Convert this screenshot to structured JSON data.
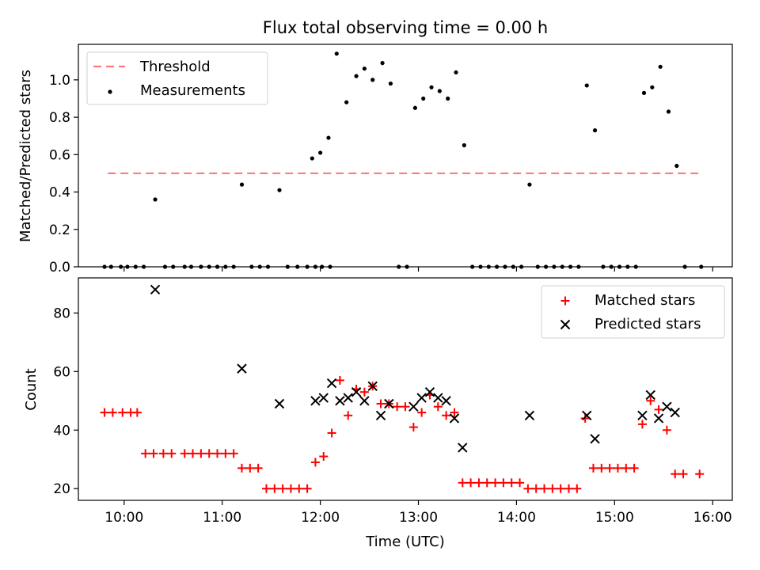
{
  "colors": {
    "threshold": "#ff7b7b",
    "measurement": "#000000",
    "matched": "#ff0000",
    "predicted": "#000000",
    "axes": "#000000"
  },
  "chart_data": [
    {
      "type": "scatter",
      "title": "Flux total observing time = 0.00 h",
      "xlabel": "",
      "ylabel": "Matched/Predicted stars",
      "ylim": [
        0,
        1.19
      ],
      "yticks": [
        0.0,
        0.2,
        0.4,
        0.6,
        0.8,
        1.0
      ],
      "ytick_labels": [
        "0.0",
        "0.2",
        "0.4",
        "0.6",
        "0.8",
        "1.0"
      ],
      "legend_position": "upper-left",
      "threshold": {
        "name": "Threshold",
        "y": 0.5,
        "x_start": "09:50",
        "x_end": "15:53",
        "style": "dashed"
      },
      "series": [
        {
          "name": "Measurements",
          "marker": "dot",
          "points": [
            [
              "09:48",
              0
            ],
            [
              "09:52",
              0
            ],
            [
              "09:58",
              0
            ],
            [
              "10:02",
              0
            ],
            [
              "10:07",
              0
            ],
            [
              "10:12",
              0
            ],
            [
              "10:19",
              0.36
            ],
            [
              "10:25",
              0
            ],
            [
              "10:30",
              0
            ],
            [
              "10:37",
              0
            ],
            [
              "10:41",
              0
            ],
            [
              "10:47",
              0
            ],
            [
              "10:52",
              0
            ],
            [
              "10:57",
              0
            ],
            [
              "11:02",
              0
            ],
            [
              "11:07",
              0
            ],
            [
              "11:12",
              0.44
            ],
            [
              "11:18",
              0
            ],
            [
              "11:23",
              0
            ],
            [
              "11:28",
              0
            ],
            [
              "11:35",
              0.41
            ],
            [
              "11:40",
              0
            ],
            [
              "11:46",
              0
            ],
            [
              "11:52",
              0
            ],
            [
              "11:57",
              0
            ],
            [
              "12:01",
              0
            ],
            [
              "12:06",
              0
            ],
            [
              "11:55",
              0.58
            ],
            [
              "12:00",
              0.61
            ],
            [
              "12:05",
              0.69
            ],
            [
              "12:10",
              1.14
            ],
            [
              "12:16",
              0.88
            ],
            [
              "12:22",
              1.02
            ],
            [
              "12:27",
              1.06
            ],
            [
              "12:32",
              1.0
            ],
            [
              "12:38",
              1.09
            ],
            [
              "12:43",
              0.98
            ],
            [
              "12:48",
              0
            ],
            [
              "12:53",
              0
            ],
            [
              "12:58",
              0.85
            ],
            [
              "13:03",
              0.9
            ],
            [
              "13:08",
              0.96
            ],
            [
              "13:13",
              0.94
            ],
            [
              "13:18",
              0.9
            ],
            [
              "13:23",
              1.04
            ],
            [
              "13:28",
              0.65
            ],
            [
              "13:33",
              0
            ],
            [
              "13:38",
              0
            ],
            [
              "13:43",
              0
            ],
            [
              "13:48",
              0
            ],
            [
              "13:53",
              0
            ],
            [
              "13:58",
              0
            ],
            [
              "14:03",
              0
            ],
            [
              "14:08",
              0.44
            ],
            [
              "14:13",
              0
            ],
            [
              "14:18",
              0
            ],
            [
              "14:23",
              0
            ],
            [
              "14:28",
              0
            ],
            [
              "14:33",
              0
            ],
            [
              "14:38",
              0
            ],
            [
              "14:43",
              0.97
            ],
            [
              "14:48",
              0.73
            ],
            [
              "14:53",
              0
            ],
            [
              "14:58",
              0
            ],
            [
              "15:03",
              0
            ],
            [
              "15:08",
              0
            ],
            [
              "15:13",
              0
            ],
            [
              "15:18",
              0.93
            ],
            [
              "15:23",
              0.96
            ],
            [
              "15:28",
              1.07
            ],
            [
              "15:33",
              0.83
            ],
            [
              "15:38",
              0.54
            ],
            [
              "15:43",
              0
            ],
            [
              "15:53",
              0
            ]
          ]
        }
      ]
    },
    {
      "type": "scatter",
      "title": "",
      "xlabel": "Time (UTC)",
      "ylabel": "Count",
      "ylim": [
        16,
        92
      ],
      "yticks": [
        20,
        40,
        60,
        80
      ],
      "ytick_labels": [
        "20",
        "40",
        "60",
        "80"
      ],
      "x_range": [
        "09:32",
        "16:12"
      ],
      "xticks": [
        "10:00",
        "11:00",
        "12:00",
        "13:00",
        "14:00",
        "15:00",
        "16:00"
      ],
      "xtick_labels": [
        "10:00",
        "11:00",
        "12:00",
        "13:00",
        "14:00",
        "15:00",
        "16:00"
      ],
      "legend_position": "upper-right",
      "series": [
        {
          "name": "Matched stars",
          "marker": "plus",
          "points": [
            [
              "09:48",
              46
            ],
            [
              "09:53",
              46
            ],
            [
              "09:59",
              46
            ],
            [
              "10:04",
              46
            ],
            [
              "10:08",
              46
            ],
            [
              "10:13",
              32
            ],
            [
              "10:18",
              32
            ],
            [
              "10:24",
              32
            ],
            [
              "10:29",
              32
            ],
            [
              "10:37",
              32
            ],
            [
              "10:42",
              32
            ],
            [
              "10:47",
              32
            ],
            [
              "10:52",
              32
            ],
            [
              "10:57",
              32
            ],
            [
              "11:02",
              32
            ],
            [
              "11:07",
              32
            ],
            [
              "11:12",
              27
            ],
            [
              "11:17",
              27
            ],
            [
              "11:22",
              27
            ],
            [
              "11:27",
              20
            ],
            [
              "11:32",
              20
            ],
            [
              "11:37",
              20
            ],
            [
              "11:42",
              20
            ],
            [
              "11:47",
              20
            ],
            [
              "11:52",
              20
            ],
            [
              "11:57",
              29
            ],
            [
              "12:02",
              31
            ],
            [
              "12:07",
              39
            ],
            [
              "12:12",
              57
            ],
            [
              "12:17",
              45
            ],
            [
              "12:22",
              54
            ],
            [
              "12:27",
              53
            ],
            [
              "12:32",
              55
            ],
            [
              "12:37",
              49
            ],
            [
              "12:42",
              49
            ],
            [
              "12:47",
              48
            ],
            [
              "12:52",
              48
            ],
            [
              "12:57",
              41
            ],
            [
              "13:02",
              46
            ],
            [
              "13:07",
              52
            ],
            [
              "13:12",
              48
            ],
            [
              "13:17",
              45
            ],
            [
              "13:22",
              46
            ],
            [
              "13:27",
              22
            ],
            [
              "13:32",
              22
            ],
            [
              "13:37",
              22
            ],
            [
              "13:42",
              22
            ],
            [
              "13:47",
              22
            ],
            [
              "13:52",
              22
            ],
            [
              "13:57",
              22
            ],
            [
              "14:02",
              22
            ],
            [
              "14:07",
              20
            ],
            [
              "14:12",
              20
            ],
            [
              "14:17",
              20
            ],
            [
              "14:22",
              20
            ],
            [
              "14:27",
              20
            ],
            [
              "14:32",
              20
            ],
            [
              "14:37",
              20
            ],
            [
              "14:42",
              44
            ],
            [
              "14:47",
              27
            ],
            [
              "14:52",
              27
            ],
            [
              "14:57",
              27
            ],
            [
              "15:02",
              27
            ],
            [
              "15:07",
              27
            ],
            [
              "15:12",
              27
            ],
            [
              "15:17",
              42
            ],
            [
              "15:22",
              50
            ],
            [
              "15:27",
              47
            ],
            [
              "15:32",
              40
            ],
            [
              "15:37",
              25
            ],
            [
              "15:42",
              25
            ],
            [
              "15:52",
              25
            ]
          ]
        },
        {
          "name": "Predicted stars",
          "marker": "x",
          "points": [
            [
              "10:19",
              88
            ],
            [
              "11:12",
              61
            ],
            [
              "11:35",
              49
            ],
            [
              "11:57",
              50
            ],
            [
              "12:02",
              51
            ],
            [
              "12:07",
              56
            ],
            [
              "12:12",
              50
            ],
            [
              "12:17",
              51
            ],
            [
              "12:22",
              53
            ],
            [
              "12:27",
              50
            ],
            [
              "12:32",
              55
            ],
            [
              "12:37",
              45
            ],
            [
              "12:42",
              49
            ],
            [
              "12:57",
              48
            ],
            [
              "13:02",
              51
            ],
            [
              "13:07",
              53
            ],
            [
              "13:12",
              51
            ],
            [
              "13:17",
              50
            ],
            [
              "13:22",
              44
            ],
            [
              "13:27",
              34
            ],
            [
              "14:08",
              45
            ],
            [
              "14:43",
              45
            ],
            [
              "14:48",
              37
            ],
            [
              "15:17",
              45
            ],
            [
              "15:22",
              52
            ],
            [
              "15:27",
              44
            ],
            [
              "15:32",
              48
            ],
            [
              "15:37",
              46
            ]
          ]
        }
      ]
    }
  ]
}
